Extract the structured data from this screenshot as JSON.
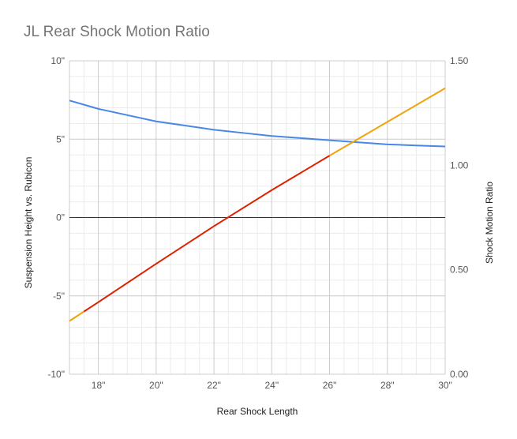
{
  "chart_data": {
    "type": "line",
    "title": "JL Rear Shock Motion Ratio",
    "xlabel": "Rear Shock Length",
    "ylabel_left": "Suspension Height vs. Rubicon",
    "ylabel_right": "Shock Motion Ratio",
    "x_range": [
      17,
      30
    ],
    "x_ticks": [
      18,
      20,
      22,
      24,
      26,
      28,
      30
    ],
    "x_tick_labels": [
      "18\"",
      "20\"",
      "22\"",
      "24\"",
      "26\"",
      "28\"",
      "30\""
    ],
    "y_left_range": [
      -10,
      10
    ],
    "y_left_ticks": [
      -10,
      -5,
      0,
      5,
      10
    ],
    "y_left_tick_labels": [
      "-10\"",
      "-5\"",
      "0\"",
      "5\"",
      "10\""
    ],
    "y_right_range": [
      0,
      1.5
    ],
    "y_right_ticks": [
      0,
      0.5,
      1.0,
      1.5
    ],
    "y_right_tick_labels": [
      "0.00",
      "0.50",
      "1.00",
      "1.50"
    ],
    "grid": true,
    "colors": {
      "motion_ratio": "#4a86e8",
      "height_out_of_range": "#f0a30a",
      "height_in_range": "#dd2200",
      "zero_line": "#333333",
      "grid_major": "#cccccc",
      "grid_minor": "#ebebeb",
      "axis_text": "#555555",
      "label_text": "#222222"
    },
    "series": [
      {
        "axis": "right",
        "color_key": "motion_ratio",
        "x": [
          17,
          18,
          19,
          20,
          21,
          22,
          23,
          24,
          25,
          26,
          27,
          28,
          29,
          30
        ],
        "values": [
          1.31,
          1.27,
          1.24,
          1.21,
          1.19,
          1.17,
          1.155,
          1.14,
          1.13,
          1.12,
          1.11,
          1.1,
          1.095,
          1.09
        ]
      },
      {
        "axis": "left",
        "color_key": "height_out_of_range",
        "x": [
          17,
          17.5
        ],
        "values": [
          -6.6,
          -6.0
        ]
      },
      {
        "axis": "left",
        "color_key": "height_in_range",
        "x": [
          17.5,
          18,
          20,
          22,
          24,
          26
        ],
        "values": [
          -6.0,
          -5.4,
          -2.95,
          -0.55,
          1.75,
          3.95
        ]
      },
      {
        "axis": "left",
        "color_key": "height_out_of_range",
        "x": [
          26,
          28,
          30
        ],
        "values": [
          3.95,
          6.1,
          8.25
        ]
      }
    ]
  }
}
